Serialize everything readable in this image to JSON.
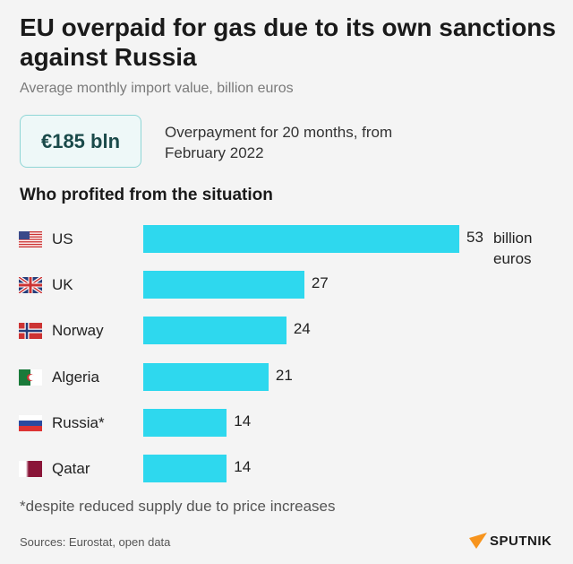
{
  "title": "EU overpaid for gas due to its own sanctions against Russia",
  "subtitle": "Average monthly import value, billion euros",
  "badge": {
    "value": "€185 bln",
    "note": "Overpayment for 20 months, from February 2022"
  },
  "section_title": "Who profited from the situation",
  "footnote": "*despite reduced supply due to price increases",
  "source": "Sources: Eurostat, open data",
  "logo": "SPUTNIK",
  "colors": {
    "bar": "#2ed8ee",
    "logo_accent": "#f7941d"
  },
  "chart_data": {
    "type": "bar",
    "orientation": "horizontal",
    "categories": [
      "US",
      "UK",
      "Norway",
      "Algeria",
      "Russia*",
      "Qatar"
    ],
    "values": [
      53,
      27,
      24,
      21,
      14,
      14
    ],
    "value_unit_label": "billion euros",
    "flags": [
      "us-flag-icon",
      "uk-flag-icon",
      "norway-flag-icon",
      "algeria-flag-icon",
      "russia-flag-icon",
      "qatar-flag-icon"
    ]
  }
}
